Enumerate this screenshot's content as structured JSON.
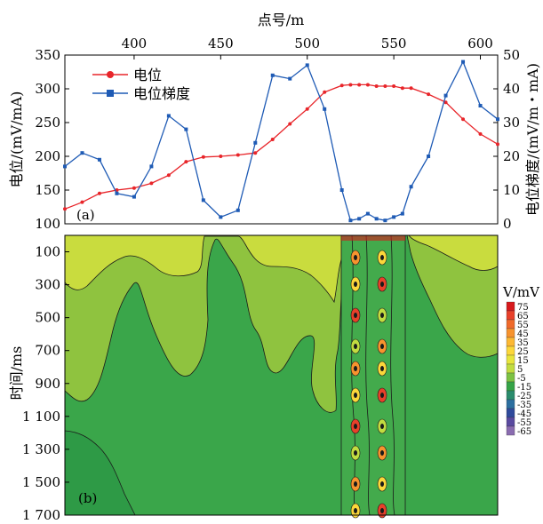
{
  "chart_data": [
    {
      "type": "line",
      "panel_label": "(a)",
      "xlabel": "点号/m",
      "xlim": [
        360,
        610
      ],
      "x_ticks": [
        400,
        450,
        500,
        550,
        600
      ],
      "ylabel_left": "电位/(mV/mA)",
      "ylim_left": [
        100,
        350
      ],
      "y_ticks_left": [
        100,
        150,
        200,
        250,
        300,
        350
      ],
      "ylabel_right": "电位梯度/(mV/m・mA)",
      "ylim_right": [
        0,
        50
      ],
      "y_ticks_right": [
        0,
        10,
        20,
        30,
        40,
        50
      ],
      "legend_position": "top-left",
      "series": [
        {
          "name": "电位",
          "axis": "left",
          "color": "#e8252a",
          "marker": "circle",
          "x": [
            360,
            370,
            380,
            390,
            400,
            410,
            420,
            430,
            440,
            450,
            460,
            470,
            480,
            490,
            500,
            510,
            520,
            525,
            530,
            535,
            540,
            545,
            550,
            555,
            560,
            570,
            580,
            590,
            600,
            610
          ],
          "y": [
            122,
            132,
            145,
            150,
            153,
            160,
            172,
            192,
            199,
            200,
            202,
            205,
            225,
            248,
            270,
            295,
            305,
            306,
            306,
            306,
            304,
            304,
            304,
            301,
            301,
            292,
            280,
            255,
            233,
            218
          ]
        },
        {
          "name": "电位梯度",
          "axis": "right",
          "color": "#1f5bb5",
          "marker": "square",
          "x": [
            360,
            370,
            380,
            390,
            400,
            410,
            420,
            430,
            440,
            450,
            460,
            470,
            480,
            490,
            500,
            510,
            520,
            525,
            530,
            535,
            540,
            545,
            550,
            555,
            560,
            570,
            580,
            590,
            600,
            610
          ],
          "y": [
            17,
            21,
            19,
            9,
            8,
            17,
            32,
            28,
            7,
            2,
            4,
            24,
            44,
            43,
            47,
            34,
            10,
            1,
            1.5,
            3,
            1.5,
            1,
            2,
            3,
            11,
            20,
            38,
            48,
            35,
            31
          ]
        }
      ]
    },
    {
      "type": "heatmap",
      "panel_label": "(b)",
      "ylabel": "时间/ms",
      "ylim": [
        1700,
        0
      ],
      "y_ticks": [
        "100",
        "300",
        "500",
        "700",
        "900",
        "1 100",
        "1 300",
        "1 500",
        "1 700"
      ],
      "colorbar_unit": "V/mV",
      "colorbar_levels": [
        "75",
        "65",
        "55",
        "45",
        "35",
        "25",
        "15",
        "5",
        "-5",
        "-15",
        "-25",
        "-35",
        "-45",
        "-55",
        "-65"
      ],
      "colorbar_colors": [
        "#d7191c",
        "#e8402a",
        "#f06a2a",
        "#f7932e",
        "#fdb833",
        "#fcd73a",
        "#e8e53c",
        "#c2dc40",
        "#7cc243",
        "#35a447",
        "#2a8c6c",
        "#2c6fa0",
        "#2f4a9c",
        "#5a4aa0",
        "#8a6cb0"
      ],
      "description_regions": "yellow-green upper area, green body, anomalies near x 520-560"
    }
  ]
}
